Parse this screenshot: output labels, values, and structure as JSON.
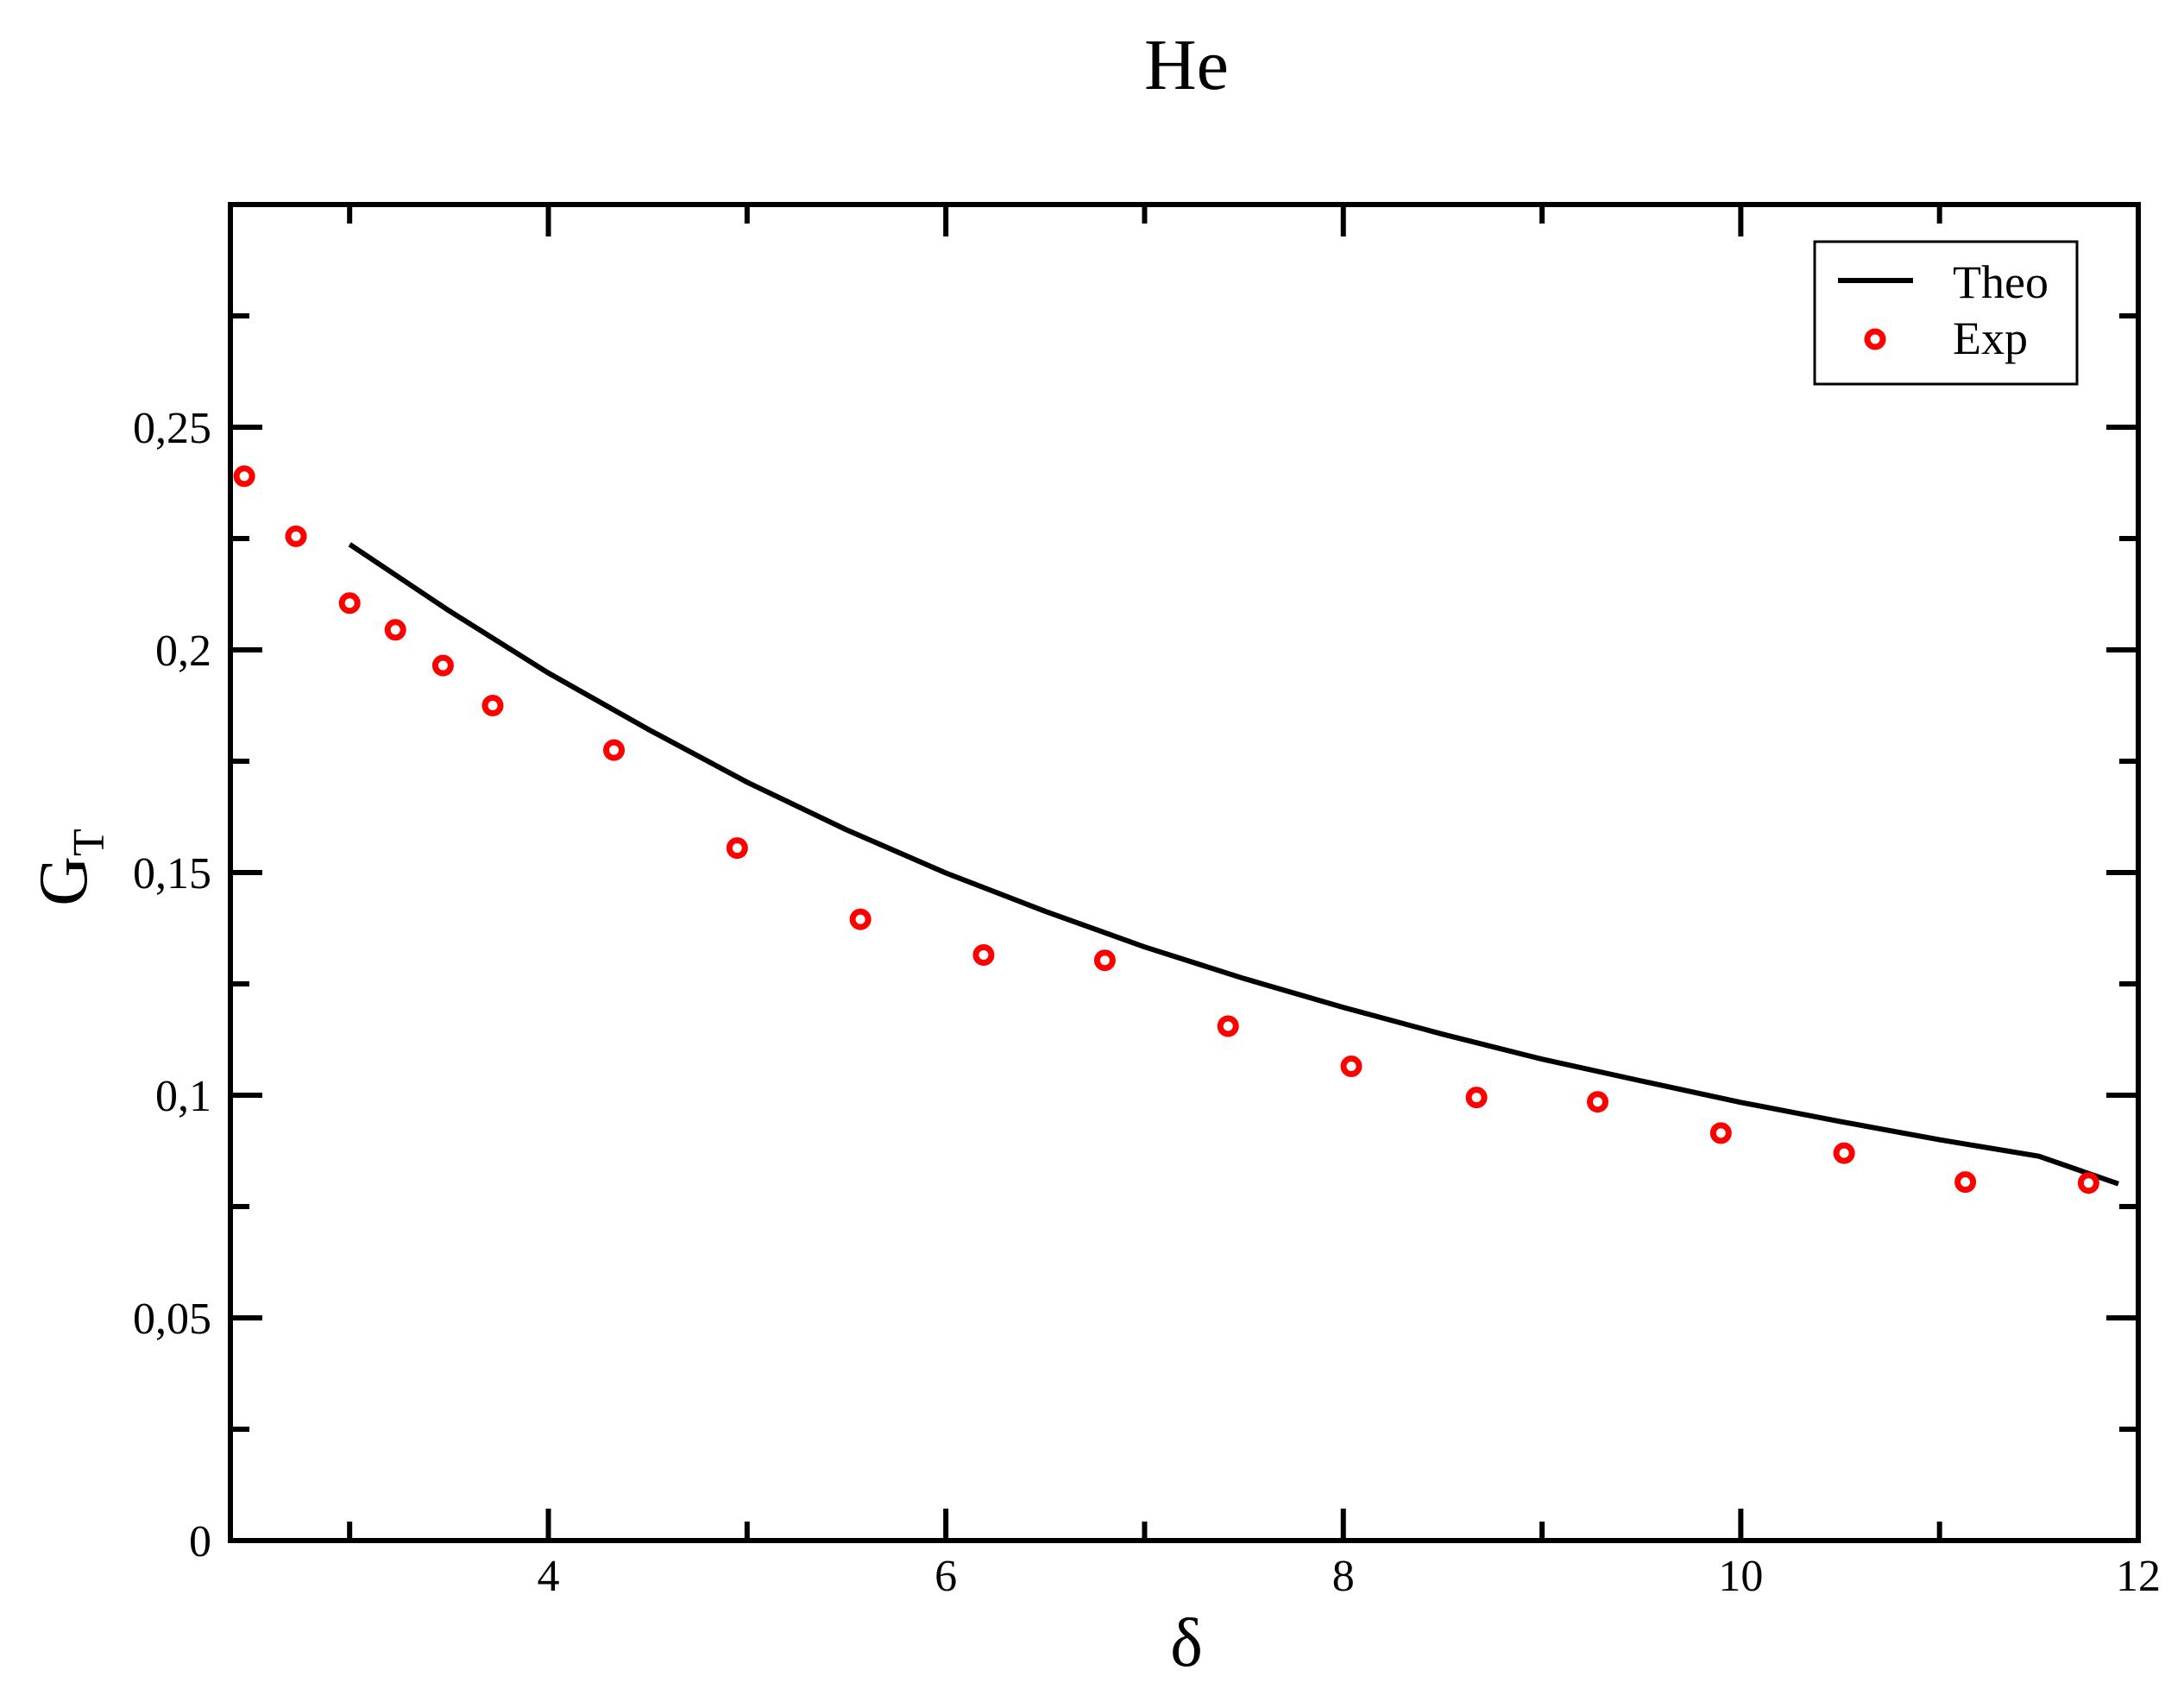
{
  "chart_data": {
    "type": "scatter",
    "title": "He",
    "xlabel": "δ",
    "ylabel_main": "G",
    "ylabel_sub": "T",
    "xlim": [
      2.4,
      12
    ],
    "ylim": [
      0,
      0.3
    ],
    "x_ticks": [
      {
        "value": 4,
        "label": "4"
      },
      {
        "value": 6,
        "label": "6"
      },
      {
        "value": 8,
        "label": "8"
      },
      {
        "value": 10,
        "label": "10"
      },
      {
        "value": 12,
        "label": "12"
      }
    ],
    "y_ticks": [
      {
        "value": 0,
        "label": "0"
      },
      {
        "value": 0.05,
        "label": "0,05"
      },
      {
        "value": 0.1,
        "label": "0,1"
      },
      {
        "value": 0.15,
        "label": "0,15"
      },
      {
        "value": 0.2,
        "label": "0,2"
      },
      {
        "value": 0.25,
        "label": "0,25"
      }
    ],
    "x_minor_ticks": [
      3,
      5,
      7,
      9,
      11
    ],
    "y_minor_ticks": [
      0.025,
      0.075,
      0.125,
      0.175,
      0.225,
      0.275
    ],
    "legend_position": "top-right",
    "series": [
      {
        "name": "Theo",
        "kind": "line",
        "color": "#000000",
        "points": [
          [
            3.0,
            0.2237
          ],
          [
            3.5,
            0.2088
          ],
          [
            4.0,
            0.1948
          ],
          [
            4.5,
            0.1822
          ],
          [
            5.0,
            0.1703
          ],
          [
            5.5,
            0.1596
          ],
          [
            6.0,
            0.1499
          ],
          [
            6.5,
            0.1413
          ],
          [
            7.0,
            0.1333
          ],
          [
            7.5,
            0.1262
          ],
          [
            8.0,
            0.1197
          ],
          [
            8.5,
            0.1137
          ],
          [
            9.0,
            0.1081
          ],
          [
            9.5,
            0.1032
          ],
          [
            10.0,
            0.0984
          ],
          [
            10.5,
            0.0941
          ],
          [
            11.0,
            0.09
          ],
          [
            11.5,
            0.0863
          ],
          [
            11.9,
            0.0801
          ]
        ]
      },
      {
        "name": "Exp",
        "kind": "markers",
        "color": "#ff0000",
        "points": [
          [
            2.47,
            0.239
          ],
          [
            2.73,
            0.2255
          ],
          [
            3.0,
            0.2105
          ],
          [
            3.23,
            0.2045
          ],
          [
            3.47,
            0.1965
          ],
          [
            3.72,
            0.1875
          ],
          [
            4.33,
            0.1775
          ],
          [
            4.95,
            0.1555
          ],
          [
            5.57,
            0.1395
          ],
          [
            6.19,
            0.1315
          ],
          [
            6.8,
            0.1303
          ],
          [
            7.42,
            0.1155
          ],
          [
            8.04,
            0.1065
          ],
          [
            8.67,
            0.0995
          ],
          [
            9.28,
            0.0985
          ],
          [
            9.9,
            0.0915
          ],
          [
            10.52,
            0.087
          ],
          [
            11.13,
            0.0805
          ],
          [
            11.75,
            0.0803
          ]
        ]
      }
    ]
  }
}
